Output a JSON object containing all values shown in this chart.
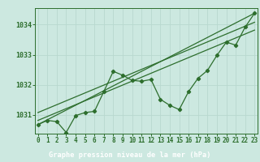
{
  "xlabel_label": "Graphe pression niveau de la mer (hPa)",
  "bg_color": "#cce8e0",
  "plot_bg_color": "#cce8e0",
  "bottom_bar_color": "#2d6e2d",
  "grid_color": "#b8d8cf",
  "line_color": "#2d6e2d",
  "marker_color": "#2d6e2d",
  "hours": [
    0,
    1,
    2,
    3,
    4,
    5,
    6,
    7,
    8,
    9,
    10,
    11,
    12,
    13,
    14,
    15,
    16,
    17,
    18,
    19,
    20,
    21,
    22,
    23
  ],
  "pressure": [
    1030.68,
    1030.82,
    1030.78,
    1030.42,
    1030.98,
    1031.08,
    1031.12,
    1031.78,
    1032.45,
    1032.32,
    1032.15,
    1032.12,
    1032.18,
    1031.52,
    1031.32,
    1031.18,
    1031.78,
    1032.22,
    1032.48,
    1032.98,
    1033.42,
    1033.32,
    1033.92,
    1034.38
  ],
  "trend1_x": [
    0,
    23
  ],
  "trend1_y": [
    1030.68,
    1034.38
  ],
  "trend2_x": [
    0,
    23
  ],
  "trend2_y": [
    1030.82,
    1033.82
  ],
  "trend3_x": [
    0,
    23
  ],
  "trend3_y": [
    1031.08,
    1034.08
  ],
  "ylim": [
    1030.38,
    1034.55
  ],
  "yticks": [
    1031,
    1032,
    1033,
    1034
  ],
  "xticks": [
    0,
    1,
    2,
    3,
    4,
    5,
    6,
    7,
    8,
    9,
    10,
    11,
    12,
    13,
    14,
    15,
    16,
    17,
    18,
    19,
    20,
    21,
    22,
    23
  ],
  "label_fontsize": 6.5,
  "tick_fontsize": 5.5
}
